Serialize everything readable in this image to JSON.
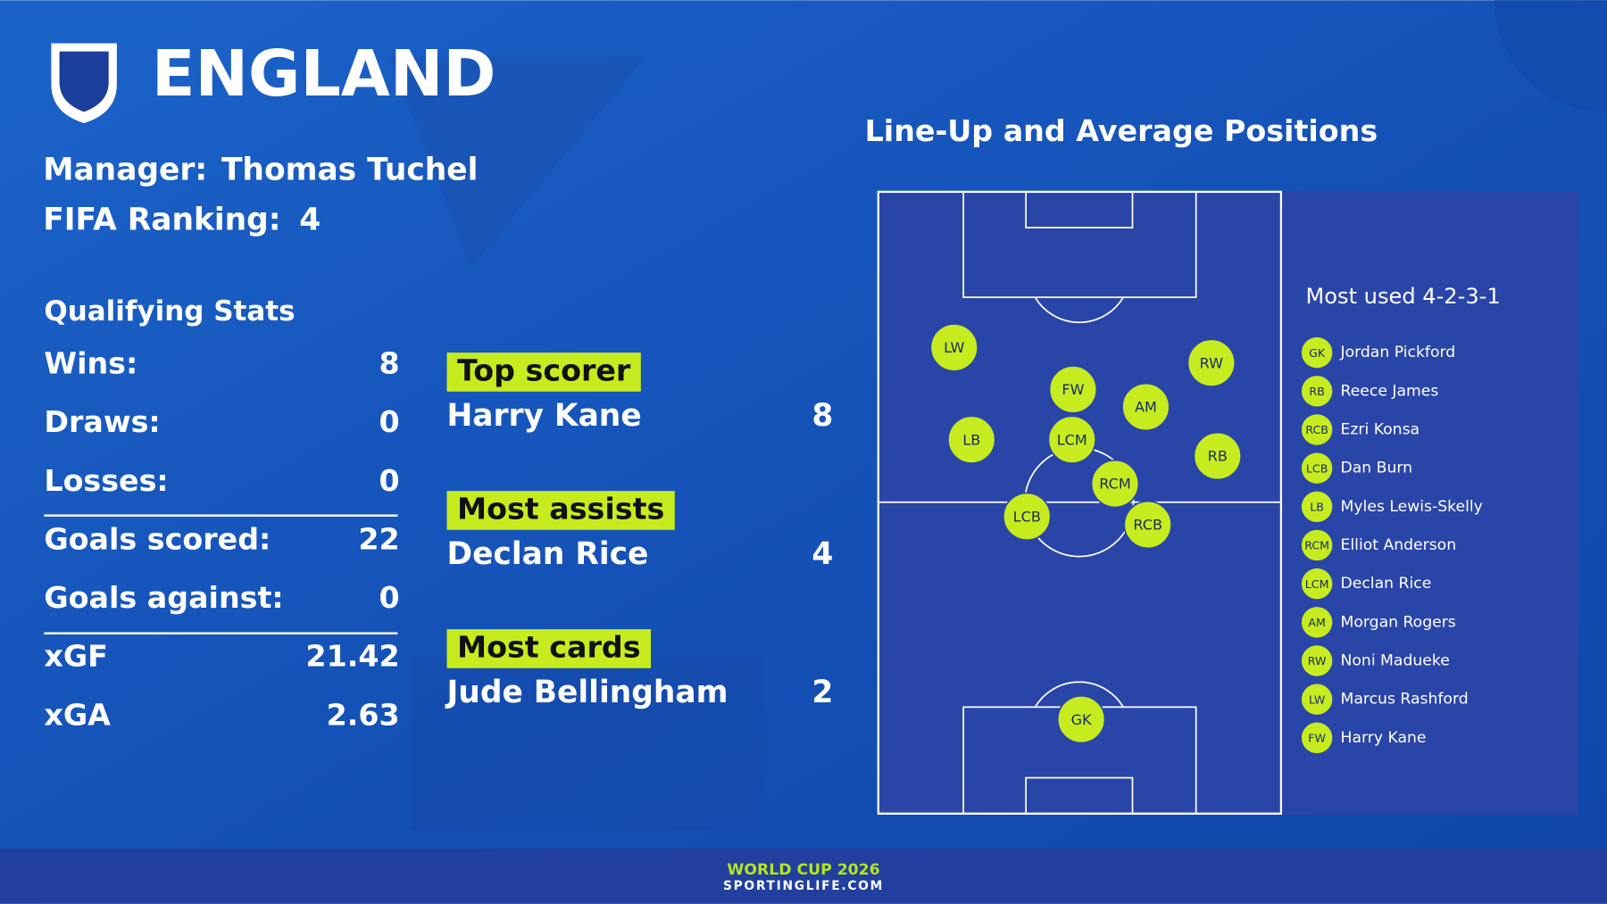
{
  "header": {
    "title": "ENGLAND",
    "manager_label": "Manager:",
    "manager": "Thomas Tuchel",
    "ranking_label": "FIFA Ranking:",
    "ranking": 4
  },
  "qualifying": {
    "title": "Qualifying Stats",
    "rows": [
      {
        "label": "Wins:",
        "value": 8
      },
      {
        "label": "Draws:",
        "value": 0
      },
      {
        "label": "Losses:",
        "value": 0
      },
      {
        "label": "Goals scored:",
        "value": 22
      },
      {
        "label": "Goals against:",
        "value": 0
      },
      {
        "label": "xGF",
        "value": 21.42
      },
      {
        "label": "xGA",
        "value": 2.63
      }
    ]
  },
  "leaders": [
    {
      "badge": "Top scorer",
      "name": "Harry Kane",
      "value": 8
    },
    {
      "badge": "Most assists",
      "name": "Declan Rice",
      "value": 4
    },
    {
      "badge": "Most cards",
      "name": "Jude Bellingham",
      "value": 2
    }
  ],
  "lineup": {
    "title": "Line-Up and Average Positions",
    "formation": "Most used 4-2-3-1",
    "players": [
      {
        "position": "GK",
        "name": "Jordan Pickford"
      },
      {
        "position": "RB",
        "name": "Reece James"
      },
      {
        "position": "RCB",
        "name": "Ezri Konsa"
      },
      {
        "position": "LCB",
        "name": "Dan Burn"
      },
      {
        "position": "LB",
        "name": "Myles Lewis-Skelly"
      },
      {
        "position": "RCM",
        "name": "Elliot Anderson"
      },
      {
        "position": "LCM",
        "name": "Declan Rice"
      },
      {
        "position": "AM",
        "name": "Morgan Rogers"
      },
      {
        "position": "RW",
        "name": "Noni Madueke"
      },
      {
        "position": "LW",
        "name": "Marcus Rashford"
      },
      {
        "position": "FW",
        "name": "Harry Kane"
      }
    ]
  },
  "footer": {
    "event": "WORLD CUP 2026",
    "site": "SPORTINGLIFE.COM"
  }
}
